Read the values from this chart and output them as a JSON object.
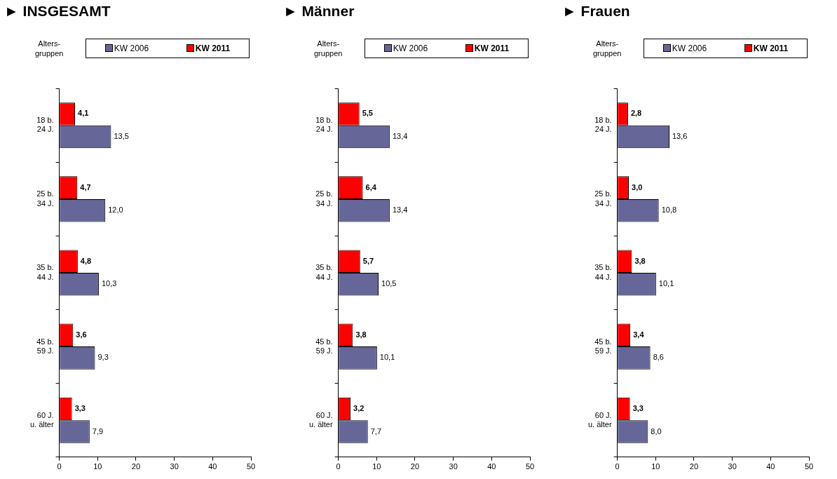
{
  "chart_data": [
    {
      "type": "bar",
      "orientation": "horizontal",
      "title": "► INSGESAMT",
      "ylabel": "Alters-\ngruppen",
      "categories": [
        "18 b.\n24 J.",
        "25 b.\n34 J.",
        "35 b.\n44 J.",
        "45 b.\n59 J.",
        "60 J.\nu. älter"
      ],
      "xlim": [
        0,
        50
      ],
      "xticks": [
        0,
        10,
        20,
        30,
        40,
        50
      ],
      "grid": false,
      "legend": "top",
      "series": [
        {
          "name": "KW 2011",
          "color": "#ff0000",
          "values": [
            4.1,
            4.7,
            4.8,
            3.6,
            3.3
          ],
          "value_labels": [
            "4,1",
            "4,7",
            "4,8",
            "3,6",
            "3,3"
          ]
        },
        {
          "name": "KW 2006",
          "color": "#666699",
          "values": [
            13.5,
            12.0,
            10.3,
            9.3,
            7.9
          ],
          "value_labels": [
            "13,5",
            "12,0",
            "10,3",
            "9,3",
            "7,9"
          ]
        }
      ]
    },
    {
      "type": "bar",
      "orientation": "horizontal",
      "title": "► Männer",
      "ylabel": "Alters-\ngruppen",
      "categories": [
        "18 b.\n24 J.",
        "25 b.\n34 J.",
        "35 b.\n44 J.",
        "45 b.\n59 J.",
        "60 J.\nu. älter"
      ],
      "xlim": [
        0,
        50
      ],
      "xticks": [
        0,
        10,
        20,
        30,
        40,
        50
      ],
      "grid": false,
      "legend": "top",
      "series": [
        {
          "name": "KW 2011",
          "color": "#ff0000",
          "values": [
            5.5,
            6.4,
            5.7,
            3.8,
            3.2
          ],
          "value_labels": [
            "5,5",
            "6,4",
            "5,7",
            "3,8",
            "3,2"
          ]
        },
        {
          "name": "KW 2006",
          "color": "#666699",
          "values": [
            13.4,
            13.4,
            10.5,
            10.1,
            7.7
          ],
          "value_labels": [
            "13,4",
            "13,4",
            "10,5",
            "10,1",
            "7,7"
          ]
        }
      ]
    },
    {
      "type": "bar",
      "orientation": "horizontal",
      "title": "► Frauen",
      "ylabel": "Alters-\ngruppen",
      "categories": [
        "18 b.\n24 J.",
        "25 b.\n34 J.",
        "35 b.\n44 J.",
        "45 b.\n59 J.",
        "60 J.\nu. älter"
      ],
      "xlim": [
        0,
        50
      ],
      "xticks": [
        0,
        10,
        20,
        30,
        40,
        50
      ],
      "grid": false,
      "legend": "top",
      "series": [
        {
          "name": "KW 2011",
          "color": "#ff0000",
          "values": [
            2.8,
            3.0,
            3.8,
            3.4,
            3.3
          ],
          "value_labels": [
            "2,8",
            "3,0",
            "3,8",
            "3,4",
            "3,3"
          ]
        },
        {
          "name": "KW 2006",
          "color": "#666699",
          "values": [
            13.6,
            10.8,
            10.1,
            8.6,
            8.0
          ],
          "value_labels": [
            "13,6",
            "10,8",
            "10,1",
            "8,6",
            "8,0"
          ]
        }
      ]
    }
  ]
}
